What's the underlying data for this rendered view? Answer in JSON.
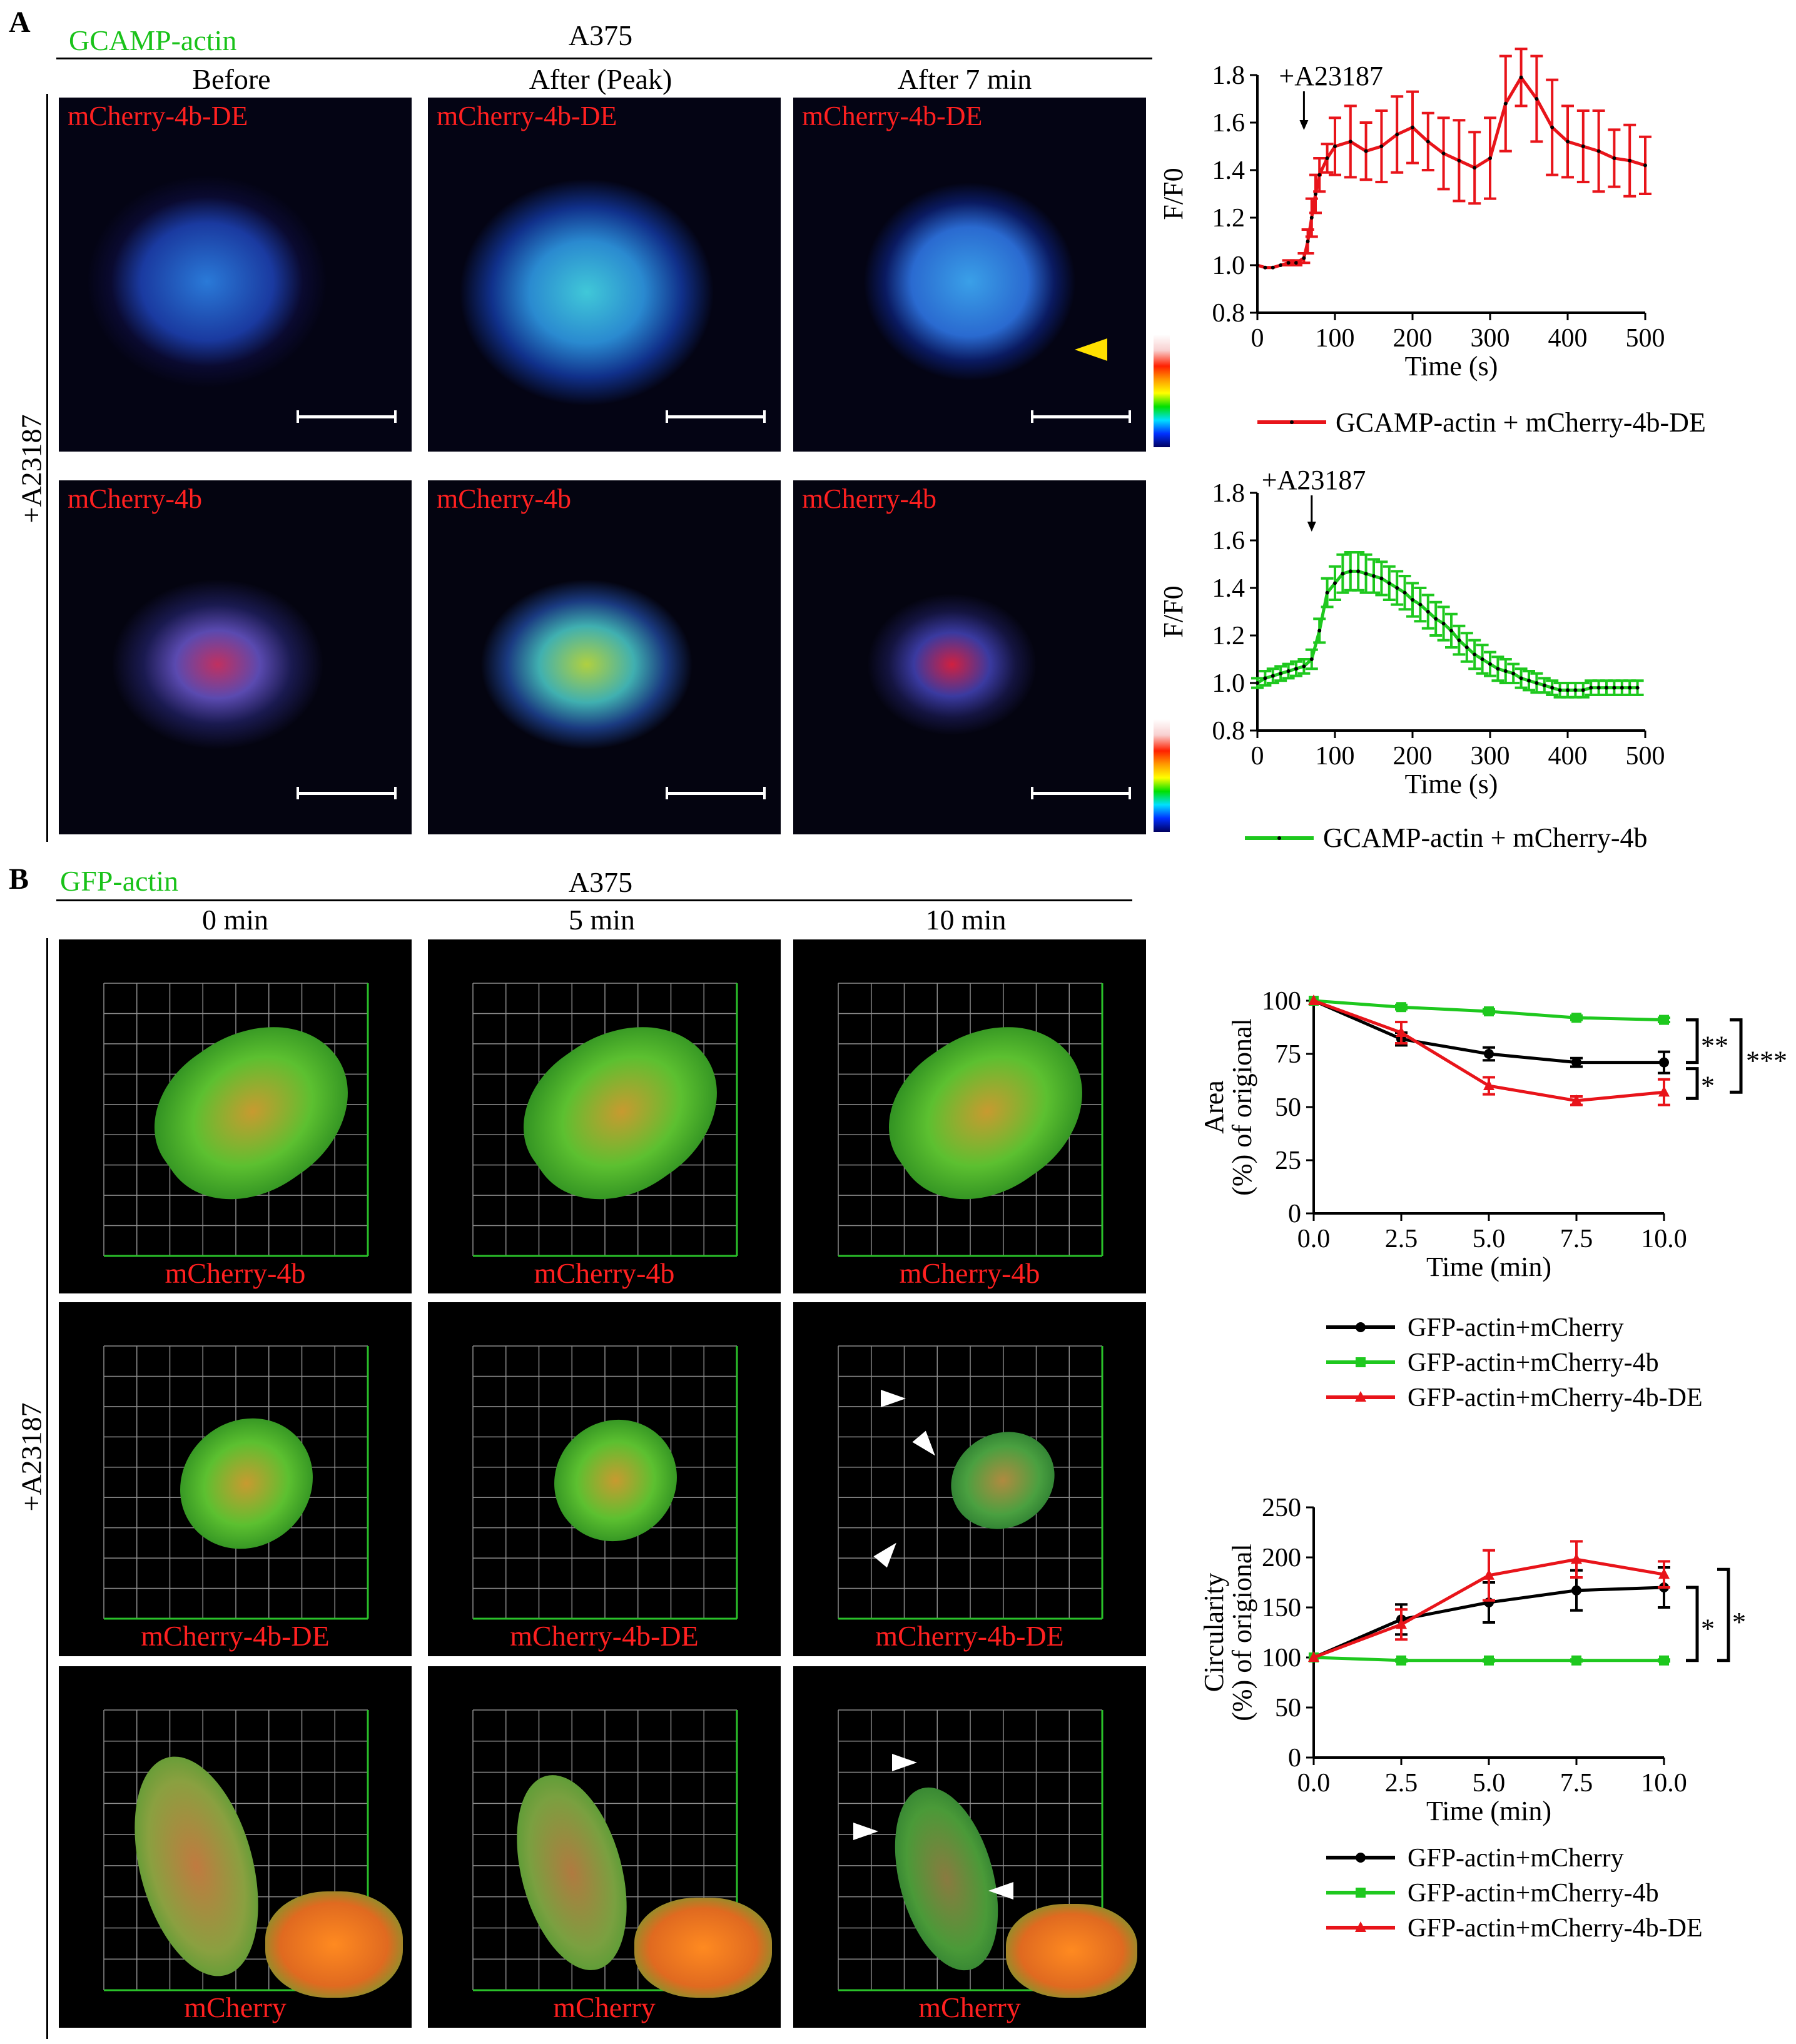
{
  "panelA": {
    "letter": "A",
    "probe": "GCAMP-actin",
    "cell_line": "A375",
    "columns": [
      "Before",
      "After (Peak)",
      "After 7 min"
    ],
    "side_label": "+A23187",
    "row_labels": [
      "mCherry-4b-DE",
      "mCherry-4b"
    ]
  },
  "panelB": {
    "letter": "B",
    "probe": "GFP-actin",
    "cell_line": "A375",
    "columns": [
      "0 min",
      "5 min",
      "10 min"
    ],
    "side_label": "+A23187",
    "row_labels": [
      "mCherry-4b",
      "mCherry-4b-DE",
      "mCherry"
    ]
  },
  "colors": {
    "red": "#e8141a",
    "green": "#1ec81e",
    "black": "#000000",
    "probe_green": "#19c219"
  },
  "chart_data": [
    {
      "id": "A-top",
      "type": "line",
      "xlabel": "Time (s)",
      "ylabel": "F/F0",
      "xlim": [
        0,
        500
      ],
      "ylim": [
        0.8,
        1.8
      ],
      "xticks": [
        0,
        100,
        200,
        300,
        400,
        500
      ],
      "yticks": [
        "0.8",
        "1.0",
        "1.2",
        "1.4",
        "1.6",
        "1.8"
      ],
      "annotation": "+A23187",
      "annotation_x": 60,
      "legend": [
        "GCAMP-actin + mCherry-4b-DE"
      ],
      "series": [
        {
          "name": "GCAMP-actin + mCherry-4b-DE",
          "color": "#e8141a",
          "x": [
            0,
            10,
            20,
            30,
            40,
            50,
            60,
            65,
            70,
            75,
            80,
            90,
            100,
            120,
            140,
            160,
            180,
            200,
            220,
            240,
            260,
            280,
            300,
            320,
            340,
            360,
            380,
            400,
            420,
            440,
            460,
            480,
            500
          ],
          "y": [
            1.0,
            0.99,
            0.99,
            1.0,
            1.01,
            1.01,
            1.03,
            1.1,
            1.2,
            1.3,
            1.38,
            1.45,
            1.5,
            1.52,
            1.48,
            1.5,
            1.55,
            1.58,
            1.52,
            1.47,
            1.44,
            1.41,
            1.45,
            1.68,
            1.79,
            1.7,
            1.58,
            1.52,
            1.5,
            1.48,
            1.45,
            1.44,
            1.42
          ],
          "err": [
            0,
            0,
            0,
            0,
            0.01,
            0.01,
            0.02,
            0.05,
            0.08,
            0.08,
            0.07,
            0.06,
            0.12,
            0.15,
            0.12,
            0.15,
            0.16,
            0.15,
            0.12,
            0.15,
            0.17,
            0.15,
            0.17,
            0.2,
            0.12,
            0.18,
            0.2,
            0.15,
            0.15,
            0.17,
            0.12,
            0.15,
            0.12
          ]
        }
      ]
    },
    {
      "id": "A-bottom",
      "type": "line",
      "xlabel": "Time (s)",
      "ylabel": "F/F0",
      "xlim": [
        0,
        500
      ],
      "ylim": [
        0.8,
        1.8
      ],
      "xticks": [
        0,
        100,
        200,
        300,
        400,
        500
      ],
      "yticks": [
        "0.8",
        "1.0",
        "1.2",
        "1.4",
        "1.6",
        "1.8"
      ],
      "annotation": "+A23187",
      "annotation_x": 70,
      "legend": [
        "GCAMP-actin + mCherry-4b"
      ],
      "series": [
        {
          "name": "GCAMP-actin + mCherry-4b",
          "color": "#1ec81e",
          "x": [
            0,
            10,
            20,
            30,
            40,
            50,
            60,
            70,
            80,
            90,
            100,
            110,
            120,
            130,
            140,
            150,
            160,
            170,
            180,
            190,
            200,
            210,
            220,
            230,
            240,
            250,
            260,
            270,
            280,
            290,
            300,
            310,
            320,
            330,
            340,
            350,
            360,
            370,
            380,
            390,
            400,
            410,
            420,
            430,
            440,
            450,
            460,
            470,
            480,
            490
          ],
          "y": [
            1.0,
            1.02,
            1.03,
            1.04,
            1.05,
            1.06,
            1.07,
            1.1,
            1.22,
            1.38,
            1.42,
            1.46,
            1.47,
            1.47,
            1.46,
            1.45,
            1.44,
            1.42,
            1.4,
            1.38,
            1.35,
            1.33,
            1.3,
            1.27,
            1.25,
            1.22,
            1.18,
            1.15,
            1.12,
            1.1,
            1.08,
            1.06,
            1.05,
            1.04,
            1.02,
            1.01,
            1.0,
            0.99,
            0.98,
            0.97,
            0.97,
            0.97,
            0.97,
            0.98,
            0.98,
            0.98,
            0.98,
            0.98,
            0.98,
            0.98
          ],
          "err": [
            0.02,
            0.03,
            0.03,
            0.03,
            0.03,
            0.03,
            0.03,
            0.04,
            0.05,
            0.06,
            0.07,
            0.08,
            0.08,
            0.08,
            0.08,
            0.07,
            0.07,
            0.07,
            0.07,
            0.07,
            0.07,
            0.07,
            0.07,
            0.07,
            0.07,
            0.07,
            0.06,
            0.06,
            0.06,
            0.06,
            0.05,
            0.05,
            0.05,
            0.04,
            0.04,
            0.04,
            0.04,
            0.03,
            0.03,
            0.03,
            0.03,
            0.03,
            0.03,
            0.03,
            0.03,
            0.03,
            0.03,
            0.03,
            0.03,
            0.03
          ]
        }
      ]
    },
    {
      "id": "B-area",
      "type": "line",
      "xlabel": "Time (min)",
      "ylabel": "Area",
      "ylabel2": "(%) of origional",
      "xlim": [
        0,
        10
      ],
      "ylim": [
        0,
        100
      ],
      "xticks": [
        "0.0",
        "2.5",
        "5.0",
        "7.5",
        "10.0"
      ],
      "yticks": [
        "0",
        "25",
        "50",
        "75",
        "100"
      ],
      "significance": [
        "**",
        "*",
        "***"
      ],
      "legend": [
        "GFP-actin+mCherry",
        "GFP-actin+mCherry-4b",
        "GFP-actin+mCherry-4b-DE"
      ],
      "series": [
        {
          "name": "GFP-actin+mCherry",
          "color": "#000000",
          "marker": "circle",
          "x": [
            0,
            2.5,
            5,
            7.5,
            10
          ],
          "y": [
            100,
            82,
            75,
            71,
            71
          ],
          "err": [
            0,
            3,
            3,
            2,
            5
          ]
        },
        {
          "name": "GFP-actin+mCherry-4b",
          "color": "#1ec81e",
          "marker": "square",
          "x": [
            0,
            2.5,
            5,
            7.5,
            10
          ],
          "y": [
            100,
            97,
            95,
            92,
            91
          ],
          "err": [
            0,
            1,
            1,
            1,
            1
          ]
        },
        {
          "name": "GFP-actin+mCherry-4b-DE",
          "color": "#e8141a",
          "marker": "triangle",
          "x": [
            0,
            2.5,
            5,
            7.5,
            10
          ],
          "y": [
            100,
            85,
            60,
            53,
            57
          ],
          "err": [
            0,
            5,
            4,
            2,
            6
          ]
        }
      ]
    },
    {
      "id": "B-circularity",
      "type": "line",
      "xlabel": "Time (min)",
      "ylabel": "Circularity",
      "ylabel2": "(%) of origional",
      "xlim": [
        0,
        10
      ],
      "ylim": [
        0,
        250
      ],
      "xticks": [
        "0.0",
        "2.5",
        "5.0",
        "7.5",
        "10.0"
      ],
      "yticks": [
        "0",
        "50",
        "100",
        "150",
        "200",
        "250"
      ],
      "significance": [
        "*",
        "*"
      ],
      "legend": [
        "GFP-actin+mCherry",
        "GFP-actin+mCherry-4b",
        "GFP-actin+mCherry-4b-DE"
      ],
      "series": [
        {
          "name": "GFP-actin+mCherry",
          "color": "#000000",
          "marker": "circle",
          "x": [
            0,
            2.5,
            5,
            7.5,
            10
          ],
          "y": [
            100,
            138,
            155,
            167,
            170
          ],
          "err": [
            0,
            15,
            20,
            20,
            20
          ]
        },
        {
          "name": "GFP-actin+mCherry-4b",
          "color": "#1ec81e",
          "marker": "square",
          "x": [
            0,
            2.5,
            5,
            7.5,
            10
          ],
          "y": [
            100,
            97,
            97,
            97,
            97
          ],
          "err": [
            0,
            1,
            1,
            1,
            1
          ]
        },
        {
          "name": "GFP-actin+mCherry-4b-DE",
          "color": "#e8141a",
          "marker": "triangle",
          "x": [
            0,
            2.5,
            5,
            7.5,
            10
          ],
          "y": [
            100,
            133,
            182,
            198,
            183
          ],
          "err": [
            0,
            15,
            25,
            18,
            13
          ]
        }
      ]
    }
  ]
}
